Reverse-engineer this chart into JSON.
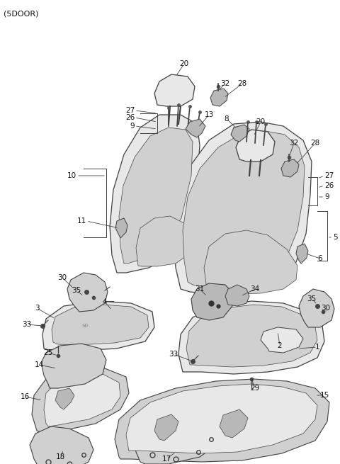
{
  "title": "(5DOOR)",
  "bg_color": "#ffffff",
  "line_color": "#404040",
  "fill_light": "#e8e8e8",
  "fill_mid": "#d0d0d0",
  "fill_dark": "#b8b8b8",
  "label_color": "#111111",
  "figsize": [
    4.8,
    6.55
  ],
  "dpi": 100
}
